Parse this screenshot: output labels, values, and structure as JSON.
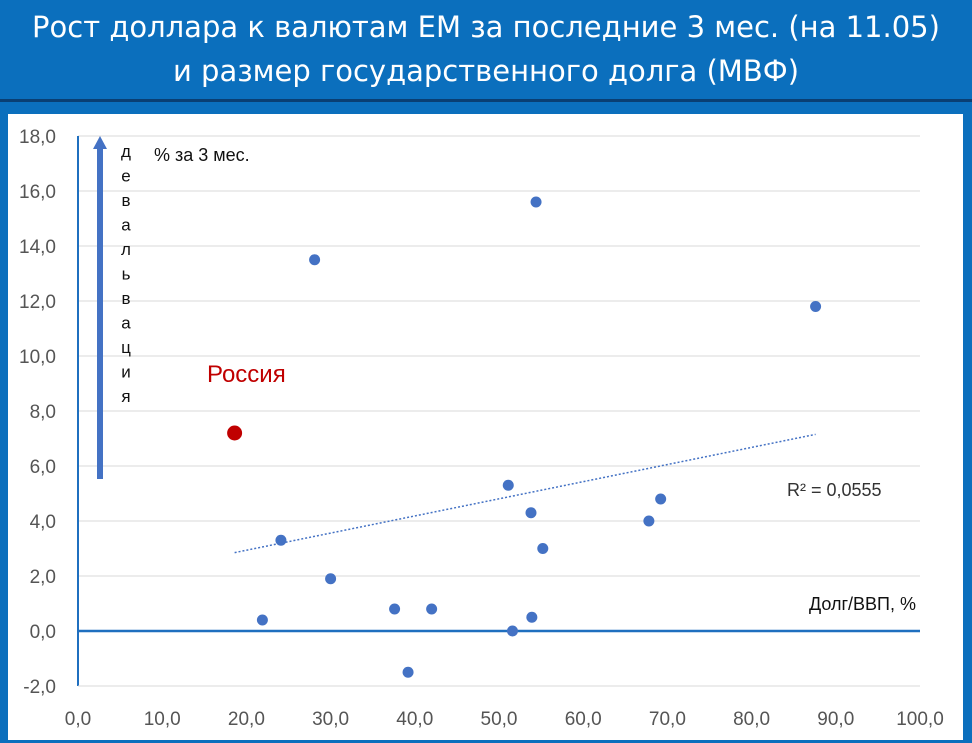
{
  "title": {
    "line1": "Рост доллара к валютам ЕМ за последние 3 мес. (на 11.05)",
    "line2": "и размер государственного долга (МВФ)"
  },
  "colors": {
    "background": "#0b6fbd",
    "points": "#4472c4",
    "highlight": "#c00000",
    "axis": "#1f6fbf"
  },
  "chart_data": {
    "type": "scatter",
    "xlabel": "Долг/ВВП, %",
    "ylabel": "% за 3 мес.",
    "arrow_label": "девальвация",
    "xlim": [
      0,
      100
    ],
    "ylim": [
      -2,
      18
    ],
    "x_ticks": [
      "0,0",
      "10,0",
      "20,0",
      "30,0",
      "40,0",
      "50,0",
      "60,0",
      "70,0",
      "80,0",
      "90,0",
      "100,0"
    ],
    "y_ticks": [
      "-2,0",
      "0,0",
      "2,0",
      "4,0",
      "6,0",
      "8,0",
      "10,0",
      "12,0",
      "14,0",
      "16,0",
      "18,0"
    ],
    "grid": "horizontal",
    "points": [
      {
        "x": 21.9,
        "y": 0.4
      },
      {
        "x": 24.1,
        "y": 3.3
      },
      {
        "x": 28.1,
        "y": 13.5
      },
      {
        "x": 30.0,
        "y": 1.9
      },
      {
        "x": 37.6,
        "y": 0.8
      },
      {
        "x": 39.2,
        "y": -1.5
      },
      {
        "x": 42.0,
        "y": 0.8
      },
      {
        "x": 51.1,
        "y": 5.3
      },
      {
        "x": 51.6,
        "y": 0.0
      },
      {
        "x": 53.8,
        "y": 4.3
      },
      {
        "x": 53.9,
        "y": 0.5
      },
      {
        "x": 54.4,
        "y": 15.6
      },
      {
        "x": 55.2,
        "y": 3.0
      },
      {
        "x": 67.8,
        "y": 4.0
      },
      {
        "x": 69.2,
        "y": 4.8
      },
      {
        "x": 87.6,
        "y": 11.8
      }
    ],
    "highlight": {
      "label": "Россия",
      "x": 18.6,
      "y": 7.2
    },
    "trendline": {
      "type": "linear",
      "x_start": 18.6,
      "y_start": 2.85,
      "x_end": 87.6,
      "y_end": 7.15,
      "r2_label": "R² = 0,0555"
    }
  }
}
